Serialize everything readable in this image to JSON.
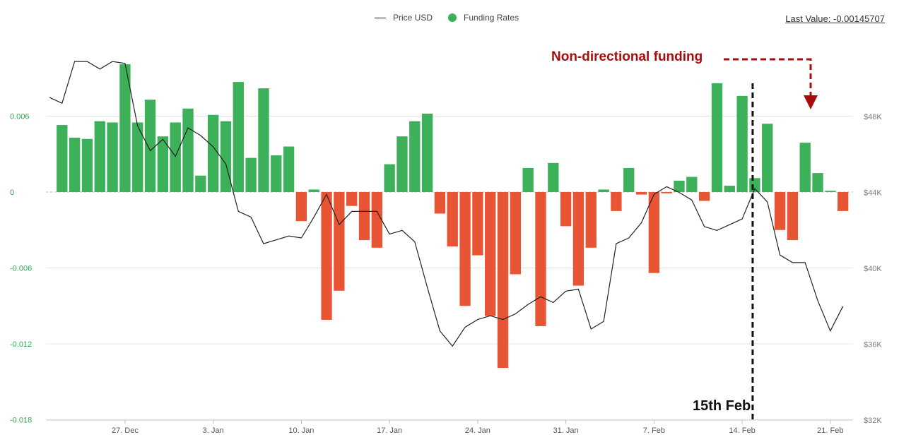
{
  "legend": {
    "price_label": "Price USD",
    "funding_label": "Funding Rates"
  },
  "last_value": "Last Value: -0.00145707",
  "annotations": {
    "non_directional": "Non-directional funding",
    "feb15": "15th Feb"
  },
  "colors": {
    "positive": "#3cb15a",
    "negative": "#e85534",
    "price_line": "#222222",
    "annotation_red": "#a80d0d"
  },
  "chart_data": {
    "type": "bar",
    "funding_axis": {
      "ylim": [
        -0.018,
        0.012
      ],
      "ticks": [
        0.006,
        0,
        -0.006,
        -0.012,
        -0.018
      ],
      "tick_labels": [
        "0.006",
        "0",
        "-0.006",
        "-0.012",
        "-0.018"
      ]
    },
    "price_axis": {
      "ylim": [
        32000,
        54000
      ],
      "ticks": [
        48000,
        44000,
        40000,
        36000,
        32000
      ],
      "tick_labels": [
        "$48K",
        "$44K",
        "$40K",
        "$36K",
        "$32K"
      ]
    },
    "x_axis": {
      "start": "2021-12-21",
      "tick_labels": [
        "27. Dec",
        "3. Jan",
        "10. Jan",
        "17. Jan",
        "24. Jan",
        "31. Jan",
        "7. Feb",
        "14. Feb",
        "21. Feb"
      ],
      "tick_dates": [
        "2021-12-27",
        "2022-01-03",
        "2022-01-10",
        "2022-01-17",
        "2022-01-24",
        "2022-01-31",
        "2022-02-07",
        "2022-02-14",
        "2022-02-21"
      ]
    },
    "series": [
      {
        "name": "Funding Rates",
        "type": "bar",
        "x": [
          "2021-12-22",
          "2021-12-23",
          "2021-12-24",
          "2021-12-25",
          "2021-12-26",
          "2021-12-27",
          "2021-12-28",
          "2021-12-29",
          "2021-12-30",
          "2021-12-31",
          "2022-01-01",
          "2022-01-02",
          "2022-01-03",
          "2022-01-04",
          "2022-01-05",
          "2022-01-06",
          "2022-01-07",
          "2022-01-08",
          "2022-01-09",
          "2022-01-10",
          "2022-01-11",
          "2022-01-12",
          "2022-01-13",
          "2022-01-14",
          "2022-01-15",
          "2022-01-16",
          "2022-01-17",
          "2022-01-18",
          "2022-01-19",
          "2022-01-20",
          "2022-01-21",
          "2022-01-22",
          "2022-01-23",
          "2022-01-24",
          "2022-01-25",
          "2022-01-26",
          "2022-01-27",
          "2022-01-28",
          "2022-01-29",
          "2022-01-30",
          "2022-01-31",
          "2022-02-01",
          "2022-02-02",
          "2022-02-03",
          "2022-02-04",
          "2022-02-05",
          "2022-02-06",
          "2022-02-07",
          "2022-02-08",
          "2022-02-09",
          "2022-02-10",
          "2022-02-11",
          "2022-02-12",
          "2022-02-13",
          "2022-02-14",
          "2022-02-15",
          "2022-02-16",
          "2022-02-17",
          "2022-02-18",
          "2022-02-19",
          "2022-02-20",
          "2022-02-21",
          "2022-02-22"
        ],
        "values": [
          0.0053,
          0.0043,
          0.0042,
          0.0056,
          0.0055,
          0.0101,
          0.0055,
          0.0073,
          0.0044,
          0.0055,
          0.0066,
          0.0013,
          0.0061,
          0.0056,
          0.0087,
          0.0027,
          0.0082,
          0.0029,
          0.0036,
          -0.0023,
          0.0002,
          -0.0101,
          -0.0078,
          -0.0011,
          -0.0038,
          -0.0044,
          0.0022,
          0.0044,
          0.0056,
          0.0062,
          -0.0017,
          -0.0043,
          -0.009,
          -0.005,
          -0.0098,
          -0.0139,
          -0.0065,
          0.0019,
          -0.0106,
          0.0023,
          -0.0027,
          -0.0074,
          -0.0044,
          0.0002,
          -0.0015,
          0.0019,
          -0.0002,
          -0.0064,
          -0.0001,
          0.0009,
          0.0012,
          -0.0007,
          0.0086,
          0.0005,
          0.0076,
          0.0011,
          0.0054,
          -0.003,
          -0.0038,
          0.0039,
          0.0015,
          0.0001,
          -0.0015
        ]
      },
      {
        "name": "Price USD",
        "type": "line",
        "x": [
          "2021-12-21",
          "2021-12-22",
          "2021-12-23",
          "2021-12-24",
          "2021-12-25",
          "2021-12-26",
          "2021-12-27",
          "2021-12-28",
          "2021-12-29",
          "2021-12-30",
          "2021-12-31",
          "2022-01-01",
          "2022-01-02",
          "2022-01-03",
          "2022-01-04",
          "2022-01-05",
          "2022-01-06",
          "2022-01-07",
          "2022-01-08",
          "2022-01-09",
          "2022-01-10",
          "2022-01-11",
          "2022-01-12",
          "2022-01-13",
          "2022-01-14",
          "2022-01-15",
          "2022-01-16",
          "2022-01-17",
          "2022-01-18",
          "2022-01-19",
          "2022-01-20",
          "2022-01-21",
          "2022-01-22",
          "2022-01-23",
          "2022-01-24",
          "2022-01-25",
          "2022-01-26",
          "2022-01-27",
          "2022-01-28",
          "2022-01-29",
          "2022-01-30",
          "2022-01-31",
          "2022-02-01",
          "2022-02-02",
          "2022-02-03",
          "2022-02-04",
          "2022-02-05",
          "2022-02-06",
          "2022-02-07",
          "2022-02-08",
          "2022-02-09",
          "2022-02-10",
          "2022-02-11",
          "2022-02-12",
          "2022-02-13",
          "2022-02-14",
          "2022-02-15",
          "2022-02-16",
          "2022-02-17",
          "2022-02-18",
          "2022-02-19",
          "2022-02-20",
          "2022-02-21",
          "2022-02-22"
        ],
        "values": [
          49000,
          48700,
          50900,
          50900,
          50500,
          50900,
          50800,
          47500,
          46200,
          46800,
          45900,
          47400,
          47000,
          46400,
          45500,
          43000,
          42700,
          41300,
          41500,
          41700,
          41600,
          42700,
          43900,
          42300,
          43000,
          43000,
          43000,
          41800,
          42000,
          41400,
          39000,
          36700,
          35900,
          36900,
          37300,
          37500,
          37300,
          37600,
          38100,
          38500,
          38200,
          38800,
          38900,
          36800,
          37200,
          41300,
          41600,
          42400,
          43900,
          44300,
          44000,
          43600,
          42200,
          42000,
          42300,
          42600,
          44200,
          43500,
          40700,
          40300,
          40300,
          38300,
          36700,
          38000
        ]
      }
    ]
  }
}
